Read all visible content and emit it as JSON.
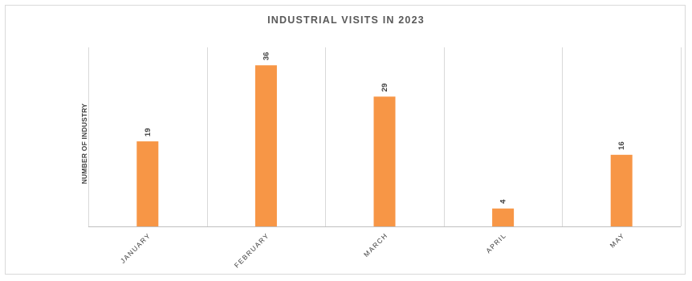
{
  "chart_data": {
    "type": "bar",
    "title": "INDUSTRIAL VISITS IN 2023",
    "xlabel": "",
    "ylabel": "NUMBER OF INDUSTRY",
    "categories": [
      "JANUARY",
      "FEBRUARY",
      "MARCH",
      "APRIL",
      "MAY"
    ],
    "values": [
      19,
      36,
      29,
      4,
      16
    ],
    "ylim": [
      0,
      40
    ],
    "grid": "vertical",
    "legend": "none",
    "colors": {
      "bar": "#f79646"
    }
  }
}
